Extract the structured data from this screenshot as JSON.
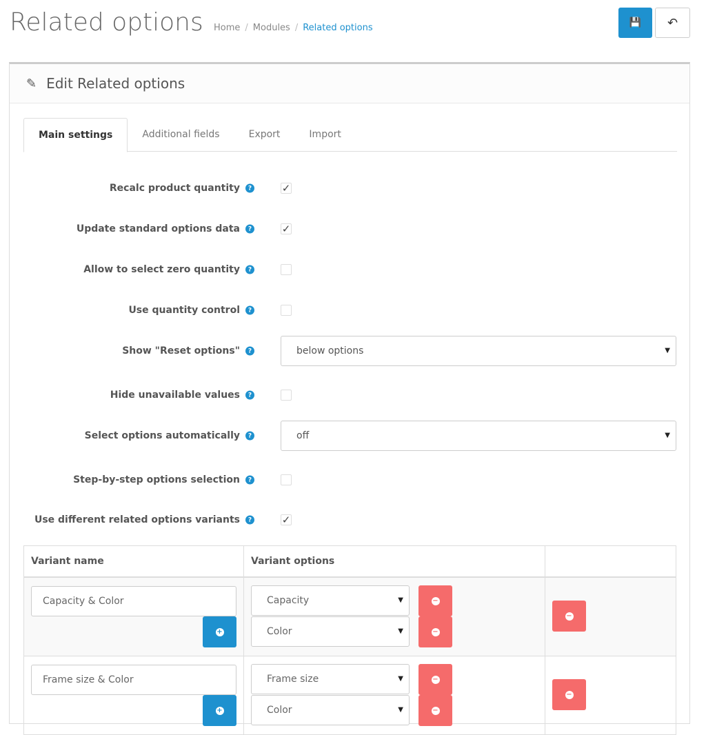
{
  "header": {
    "title": "Related options",
    "breadcrumb": [
      "Home",
      "Modules",
      "Related options"
    ],
    "save_icon": "save-icon",
    "back_icon": "reply-icon"
  },
  "panel": {
    "title": "Edit Related options",
    "icon": "pencil-icon"
  },
  "tabs": [
    {
      "label": "Main settings",
      "active": true
    },
    {
      "label": "Additional fields"
    },
    {
      "label": "Export"
    },
    {
      "label": "Import"
    }
  ],
  "settings": [
    {
      "label": "Recalc product quantity",
      "type": "checkbox",
      "checked": true
    },
    {
      "label": "Update standard options data",
      "type": "checkbox",
      "checked": true
    },
    {
      "label": "Allow to select zero quantity",
      "type": "checkbox",
      "checked": false
    },
    {
      "label": "Use quantity control",
      "type": "checkbox",
      "checked": false
    },
    {
      "label": "Show \"Reset options\"",
      "type": "select",
      "value": "below options"
    },
    {
      "label": "Hide unavailable values",
      "type": "checkbox",
      "checked": false
    },
    {
      "label": "Select options automatically",
      "type": "select",
      "value": "off"
    },
    {
      "label": "Step-by-step options selection",
      "type": "checkbox",
      "checked": false
    },
    {
      "label": "Use different related options variants",
      "type": "checkbox",
      "checked": true
    }
  ],
  "variants": {
    "headers": [
      "Variant name",
      "Variant options",
      ""
    ],
    "rows": [
      {
        "name": "Capacity & Color",
        "options": [
          "Capacity",
          "Color"
        ]
      },
      {
        "name": "Frame size & Color",
        "options": [
          "Frame size",
          "Color"
        ]
      }
    ]
  },
  "colors": {
    "primary": "#1e91cf",
    "danger": "#f56b6b"
  }
}
